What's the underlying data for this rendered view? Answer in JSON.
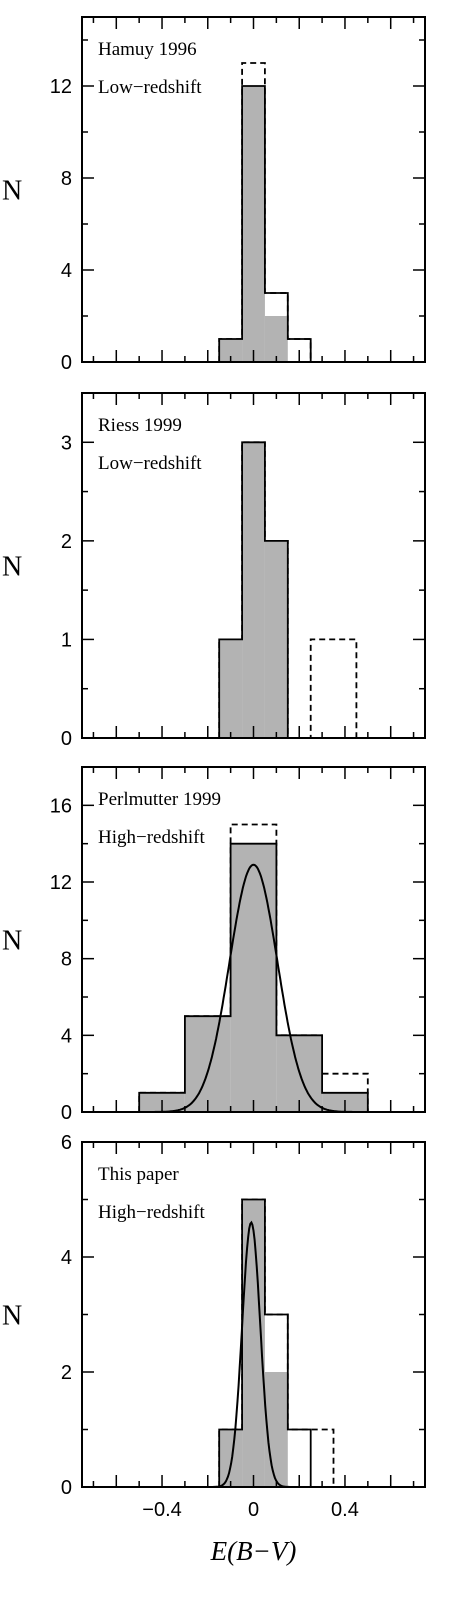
{
  "chart_data": [
    {
      "type": "histogram",
      "annotation": [
        "Hamuy 1996",
        "Low−redshift"
      ],
      "ylabel": "N",
      "ylim": [
        0,
        15
      ],
      "yticks": [
        0,
        4,
        8,
        12
      ],
      "ytick_labels": [
        "0",
        "4",
        "8",
        "12"
      ],
      "bin_edges": [
        -0.15,
        -0.05,
        0.05,
        0.15,
        0.25
      ],
      "filled": [
        1,
        12,
        2,
        0
      ],
      "solid": [
        1,
        12,
        3,
        1
      ],
      "dashed": [
        1,
        13,
        3,
        1
      ]
    },
    {
      "type": "histogram",
      "annotation": [
        "Riess 1999",
        "Low−redshift"
      ],
      "ylabel": "N",
      "ylim": [
        0,
        3.5
      ],
      "yticks": [
        0,
        1,
        2,
        3
      ],
      "ytick_labels": [
        "0",
        "1",
        "2",
        "3"
      ],
      "bin_edges": [
        -0.15,
        -0.05,
        0.05,
        0.15,
        0.25,
        0.35,
        0.45
      ],
      "filled": [
        1,
        3,
        2,
        0,
        0,
        0
      ],
      "solid": [
        1,
        3,
        2,
        0,
        0,
        0
      ],
      "dashed": [
        1,
        3,
        2,
        0,
        1,
        1
      ]
    },
    {
      "type": "histogram",
      "annotation": [
        "Perlmutter 1999",
        "High−redshift"
      ],
      "ylabel": "N",
      "ylim": [
        0,
        18
      ],
      "yticks": [
        0,
        4,
        8,
        12,
        16
      ],
      "ytick_labels": [
        "0",
        "4",
        "8",
        "12",
        "16"
      ],
      "bin_edges": [
        -0.5,
        -0.3,
        -0.1,
        0.1,
        0.3,
        0.5
      ],
      "filled": [
        1,
        5,
        14,
        4,
        1
      ],
      "solid": [
        1,
        5,
        14,
        4,
        1
      ],
      "dashed": [
        1,
        5,
        15,
        4,
        2
      ],
      "curve": {
        "amplitude": 12.9,
        "center": 0.0,
        "sigma": 0.105
      }
    },
    {
      "type": "histogram",
      "annotation": [
        "This paper",
        "High−redshift"
      ],
      "ylabel": "N",
      "ylim": [
        0,
        6
      ],
      "yticks": [
        0,
        2,
        4,
        6
      ],
      "ytick_labels": [
        "0",
        "2",
        "4",
        "6"
      ],
      "bin_edges": [
        -0.15,
        -0.05,
        0.05,
        0.15,
        0.25,
        0.35
      ],
      "filled": [
        1,
        5,
        2,
        0,
        0
      ],
      "solid": [
        1,
        5,
        3,
        1,
        0
      ],
      "dashed": [
        1,
        5,
        3,
        1,
        1
      ],
      "curve": {
        "amplitude": 4.6,
        "center": -0.01,
        "sigma": 0.04
      }
    }
  ],
  "xaxis": {
    "xlim": [
      -0.75,
      0.75
    ],
    "major_ticks": [
      -0.4,
      0,
      0.4
    ],
    "tick_labels": [
      "−0.4",
      "0",
      "0.4"
    ],
    "xlabel": "E(B−V)"
  },
  "colors": {
    "fill": "#b3b3b3",
    "line": "#000000"
  }
}
